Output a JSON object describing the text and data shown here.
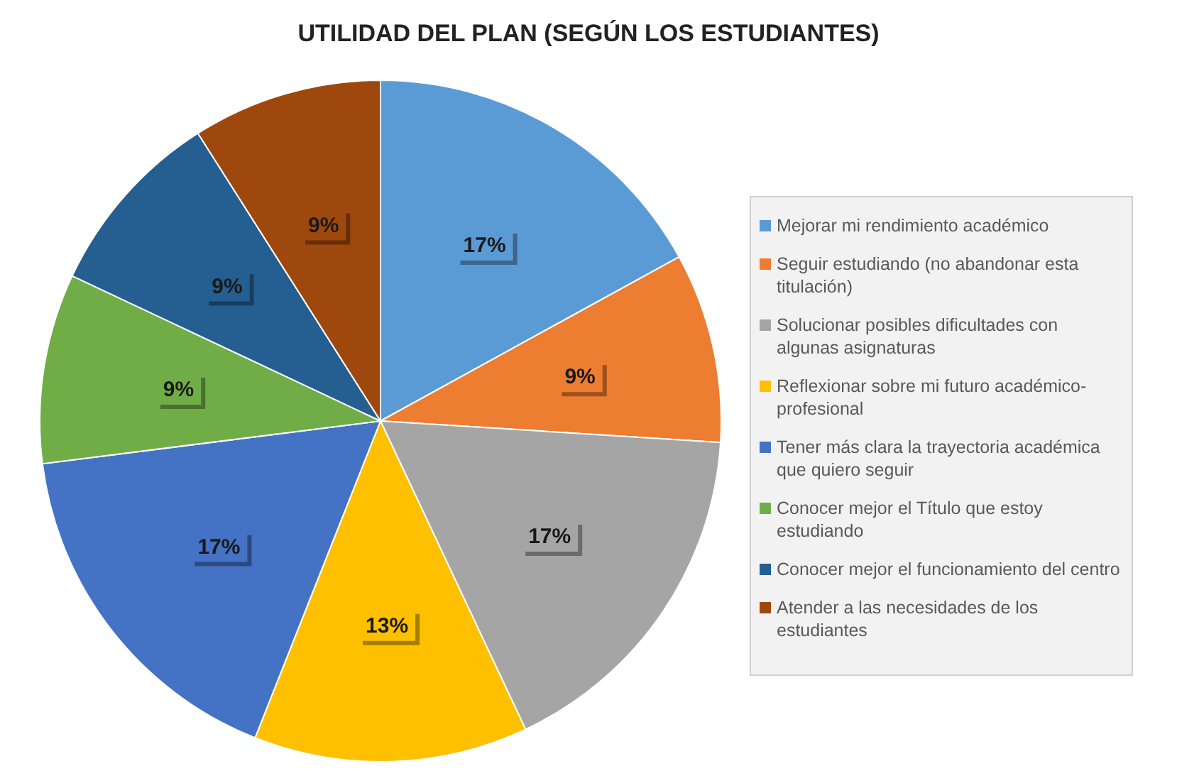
{
  "chart_data": {
    "type": "pie",
    "title": "UTILIDAD DEL PLAN (SEGÚN LOS ESTUDIANTES)",
    "categories": [
      "Mejorar mi rendimiento académico",
      "Seguir estudiando (no abandonar esta titulación)",
      "Solucionar posibles dificultades con algunas asignaturas",
      "Reflexionar sobre mi futuro académico-profesional",
      "Tener más clara la trayectoria académica que quiero seguir",
      "Conocer mejor el Título que estoy estudiando",
      "Conocer mejor el funcionamiento del centro",
      "Atender a las necesidades de los estudiantes"
    ],
    "values": [
      17,
      9,
      17,
      13,
      17,
      9,
      9,
      9
    ],
    "value_labels": [
      "17%",
      "9%",
      "17%",
      "13%",
      "17%",
      "9%",
      "9%",
      "9%"
    ],
    "colors": [
      "#5b9bd5",
      "#ed7d31",
      "#a5a5a5",
      "#ffc000",
      "#4472c4",
      "#70ad47",
      "#255e91",
      "#9e480e"
    ],
    "legend": "right"
  }
}
